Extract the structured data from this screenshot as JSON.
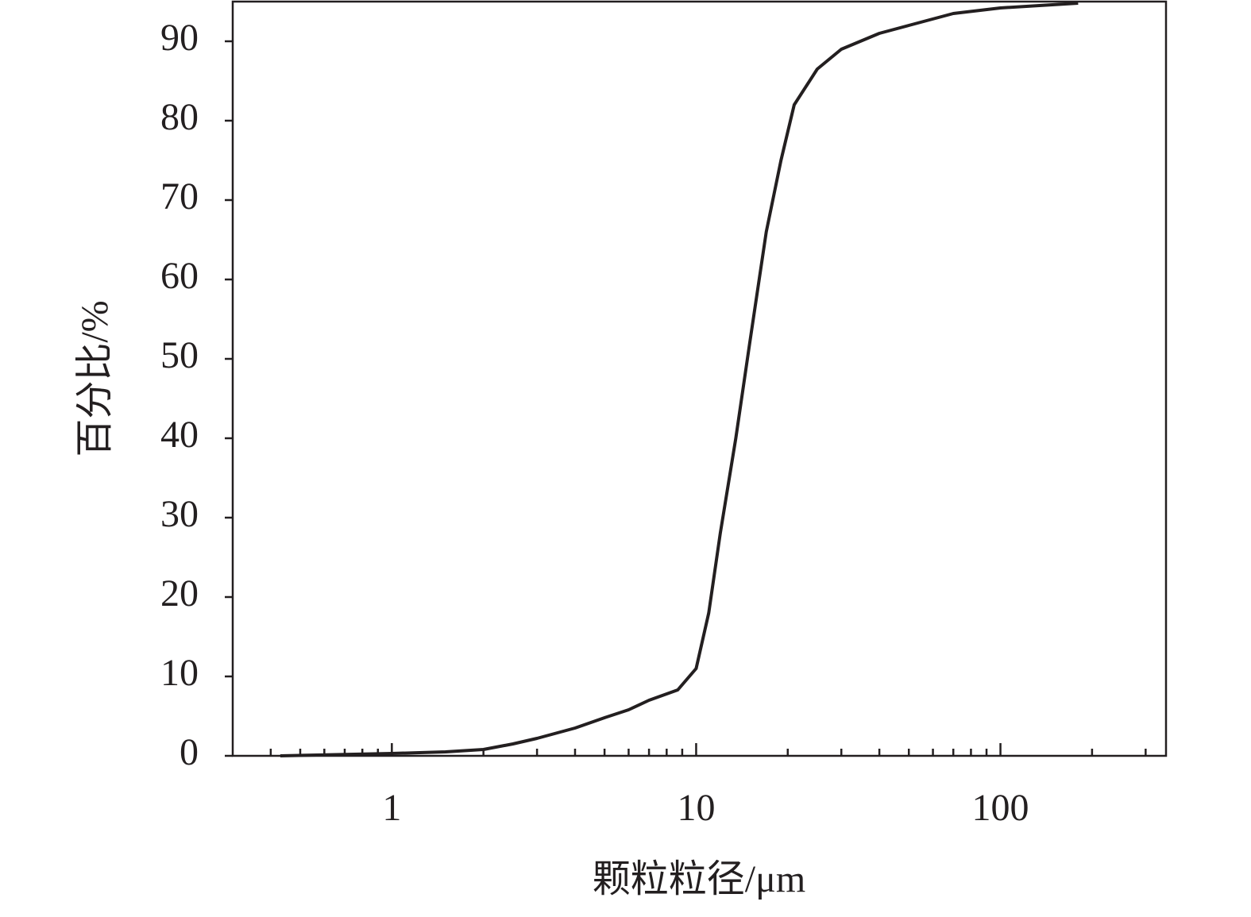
{
  "chart_data": {
    "type": "line",
    "xlabel": "颗粒粒径/μm",
    "ylabel": "百分比/%",
    "xscale": "log",
    "xlim": [
      0.3,
      350
    ],
    "ylim": [
      0,
      95
    ],
    "xticks": [
      1,
      10,
      100
    ],
    "xminorticks": [
      0.4,
      0.5,
      0.6,
      0.7,
      0.8,
      0.9,
      2,
      3,
      4,
      5,
      6,
      7,
      8,
      9,
      20,
      30,
      40,
      50,
      60,
      70,
      80,
      90,
      200,
      300
    ],
    "yticks": [
      0,
      10,
      20,
      30,
      40,
      50,
      60,
      70,
      80,
      90
    ],
    "grid": false,
    "series": [
      {
        "color": "#231f20",
        "x": [
          0.43,
          1,
          1.5,
          2,
          2.5,
          3,
          4,
          5,
          6,
          7,
          8.7,
          10,
          11,
          12,
          13.5,
          15,
          17,
          19,
          21,
          25,
          30,
          40,
          50,
          70,
          100,
          180
        ],
        "values": [
          0,
          0.3,
          0.5,
          0.8,
          1.5,
          2.2,
          3.5,
          4.8,
          5.8,
          7,
          8.3,
          11,
          18,
          28,
          40,
          52,
          66,
          75,
          82,
          86.5,
          89,
          91,
          92,
          93.5,
          94.2,
          94.8
        ]
      }
    ]
  }
}
